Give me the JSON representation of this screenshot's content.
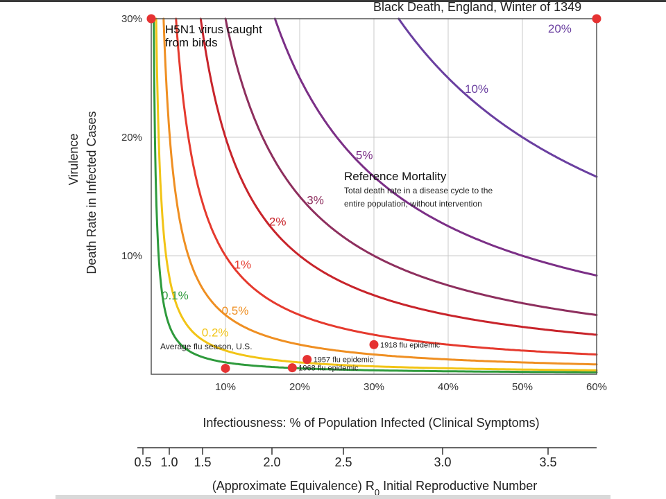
{
  "chart_data": {
    "type": "line",
    "corner_label": "Black Death, England, Winter of 1349",
    "xlabel": "Infectiousness: % of Population Infected (Clinical Symptoms)",
    "ylabel_line1": "Virulence",
    "ylabel_line2": "Death Rate in Infected Cases",
    "xlim": [
      0,
      60
    ],
    "ylim": [
      0,
      30
    ],
    "x_ticks": [
      {
        "value": 10,
        "label": "10%"
      },
      {
        "value": 20,
        "label": "20%"
      },
      {
        "value": 30,
        "label": "30%"
      },
      {
        "value": 40,
        "label": "40%"
      },
      {
        "value": 50,
        "label": "50%"
      },
      {
        "value": 60,
        "label": "60%"
      }
    ],
    "y_ticks": [
      {
        "value": 10,
        "label": "10%"
      },
      {
        "value": 20,
        "label": "20%"
      },
      {
        "value": 30,
        "label": "30%"
      }
    ],
    "grid": true,
    "series": [
      {
        "name": "0.1%",
        "mortality": 0.1,
        "color": "#2e9a3c"
      },
      {
        "name": "0.2%",
        "mortality": 0.2,
        "color": "#f2c416"
      },
      {
        "name": "0.5%",
        "mortality": 0.5,
        "color": "#ef8f22"
      },
      {
        "name": "1%",
        "mortality": 1,
        "color": "#e53a2e"
      },
      {
        "name": "2%",
        "mortality": 2,
        "color": "#c8242b"
      },
      {
        "name": "3%",
        "mortality": 3,
        "color": "#8e2f5e"
      },
      {
        "name": "5%",
        "mortality": 5,
        "color": "#7b2f86"
      },
      {
        "name": "10%",
        "mortality": 10,
        "color": "#6a3fa0"
      },
      {
        "name": "20%",
        "mortality": 20,
        "color": "#6a3fa0"
      }
    ],
    "annotations": {
      "h5n1": {
        "line1": "H5N1 virus caught",
        "line2": "from birds"
      },
      "reference_title": "Reference Mortality",
      "reference_line1": "Total death rate in a disease cycle to the",
      "reference_line2": "entire population, without intervention",
      "avg_flu": "Average flu season, U.S."
    },
    "points": [
      {
        "name": "h5n1",
        "x": 0,
        "y": 30,
        "label": ""
      },
      {
        "name": "black-death",
        "x": 60,
        "y": 30,
        "label": ""
      },
      {
        "name": "avg-flu",
        "x": 10,
        "y": 0.5,
        "label": ""
      },
      {
        "name": "flu-1968",
        "x": 19,
        "y": 0.55,
        "label": "1968 flu epidemic"
      },
      {
        "name": "flu-1957",
        "x": 21,
        "y": 1.25,
        "label": "1957 flu epidemic"
      },
      {
        "name": "flu-1918",
        "x": 30,
        "y": 2.5,
        "label": "1918 flu epidemic"
      }
    ],
    "point_color": "#e63232",
    "r0_axis": {
      "label_prefix": "(Approximate Equivalence) R",
      "label_sub": "0",
      "label_suffix": " Initial Reproductive Number",
      "ticks": [
        {
          "value": 0.5,
          "label": "0.5"
        },
        {
          "value": 1.0,
          "label": "1.0"
        },
        {
          "value": 1.5,
          "label": "1.5"
        },
        {
          "value": 2.0,
          "label": "2.0"
        },
        {
          "value": 2.5,
          "label": "2.5"
        },
        {
          "value": 3.0,
          "label": "3.0"
        },
        {
          "value": 3.5,
          "label": "3.5"
        }
      ]
    }
  }
}
